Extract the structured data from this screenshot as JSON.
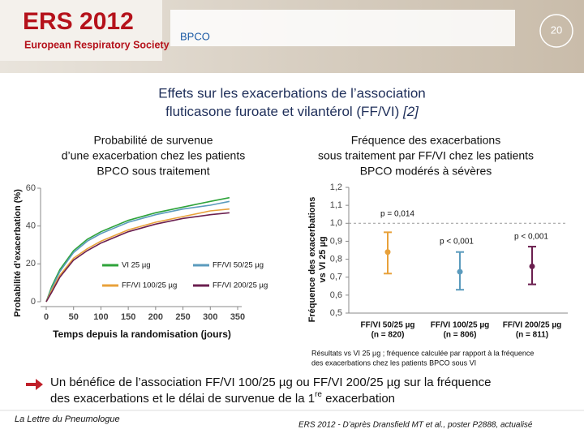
{
  "header": {
    "logo_title": "ERS 2012",
    "logo_subtitle": "European Respiratory Society",
    "section": "BPCO",
    "page": "20"
  },
  "title": {
    "lines": [
      "Effets sur les exacerbations de l’association",
      "fluticasone furoate et vilantérol (FF/VI) "
    ],
    "ref": "[2]"
  },
  "chart_data": [
    {
      "type": "line",
      "title": [
        "Probabilité de survenue",
        "d’une exacerbation chez les patients",
        "BPCO sous traitement"
      ],
      "x_label": "Temps depuis la randomisation (jours)",
      "y_label": "Probabilité d’exacerbation (%)",
      "x": [
        0,
        10,
        25,
        50,
        75,
        100,
        150,
        200,
        250,
        300,
        335
      ],
      "xlim": [
        0,
        350
      ],
      "xticks": [
        0,
        50,
        100,
        150,
        200,
        250,
        300,
        350
      ],
      "ylim": [
        0,
        60
      ],
      "yticks": [
        0,
        20,
        40,
        60
      ],
      "series": [
        {
          "name": "VI 25 µg",
          "color": "#2ea33a",
          "values": [
            0,
            8,
            17,
            27,
            33,
            37,
            43,
            47,
            50,
            53,
            55
          ]
        },
        {
          "name": "FF/VI 50/25 µg",
          "color": "#5b9bbd",
          "values": [
            0,
            7,
            16,
            26,
            32,
            36,
            42,
            46,
            49,
            51,
            53
          ]
        },
        {
          "name": "FF/VI 100/25 µg",
          "color": "#e8a13a",
          "values": [
            0,
            6,
            14,
            23,
            28,
            32,
            38,
            42,
            45,
            48,
            49
          ]
        },
        {
          "name": "FF/VI 200/25 µg",
          "color": "#6b1f4f",
          "values": [
            0,
            5,
            13,
            22,
            27,
            31,
            37,
            41,
            44,
            46,
            47
          ]
        }
      ]
    },
    {
      "type": "dot",
      "title": [
        "Fréquence des exacerbations",
        "sous traitement par FF/VI chez les patients",
        "BPCO modérés à sévères"
      ],
      "y_label": [
        "Fréquence des exacerbations",
        "vs VI 25 µg"
      ],
      "categories": [
        "FF/VI 50/25 µg",
        "FF/VI 100/25 µg",
        "FF/VI 200/25 µg"
      ],
      "n_labels": [
        "(n = 820)",
        "(n = 806)",
        "(n = 811)"
      ],
      "values": [
        0.84,
        0.73,
        0.76
      ],
      "lower": [
        0.72,
        0.63,
        0.66
      ],
      "upper": [
        0.95,
        0.84,
        0.87
      ],
      "colors": [
        "#e8a13a",
        "#5b9bbd",
        "#6b1f4f"
      ],
      "reference": 1.0,
      "annotations": [
        "p = 0,014",
        "p < 0,001",
        "p < 0,001"
      ],
      "ylim": [
        0.5,
        1.2
      ],
      "yticks": [
        {
          "value": 0.5,
          "label": "0,5"
        },
        {
          "value": 0.6,
          "label": "0,6"
        },
        {
          "value": 0.7,
          "label": "0,7"
        },
        {
          "value": 0.8,
          "label": "0,8"
        },
        {
          "value": 0.9,
          "label": "0,9"
        },
        {
          "value": 1.0,
          "label": "1,0"
        },
        {
          "value": 1.1,
          "label": "1,1"
        },
        {
          "value": 1.2,
          "label": "1,2"
        }
      ]
    }
  ],
  "footnote": [
    "Résultats vs VI 25 µg ; fréquence calculée par rapport à la fréquence",
    "des exacerbations chez les patients BPCO sous VI"
  ],
  "bullet": {
    "line1": "Un bénéfice de l’association FF/VI 100/25 µg ou FF/VI 200/25 µg sur la fréquence",
    "line2": [
      "des exacerbations et le délai de survenue de la 1",
      "re",
      " exacerbation"
    ]
  },
  "footer": {
    "left": "La Lettre du Pneumologue",
    "right": "ERS 2012 - D’après Dransfield MT et al., poster P2888, actualisé"
  }
}
